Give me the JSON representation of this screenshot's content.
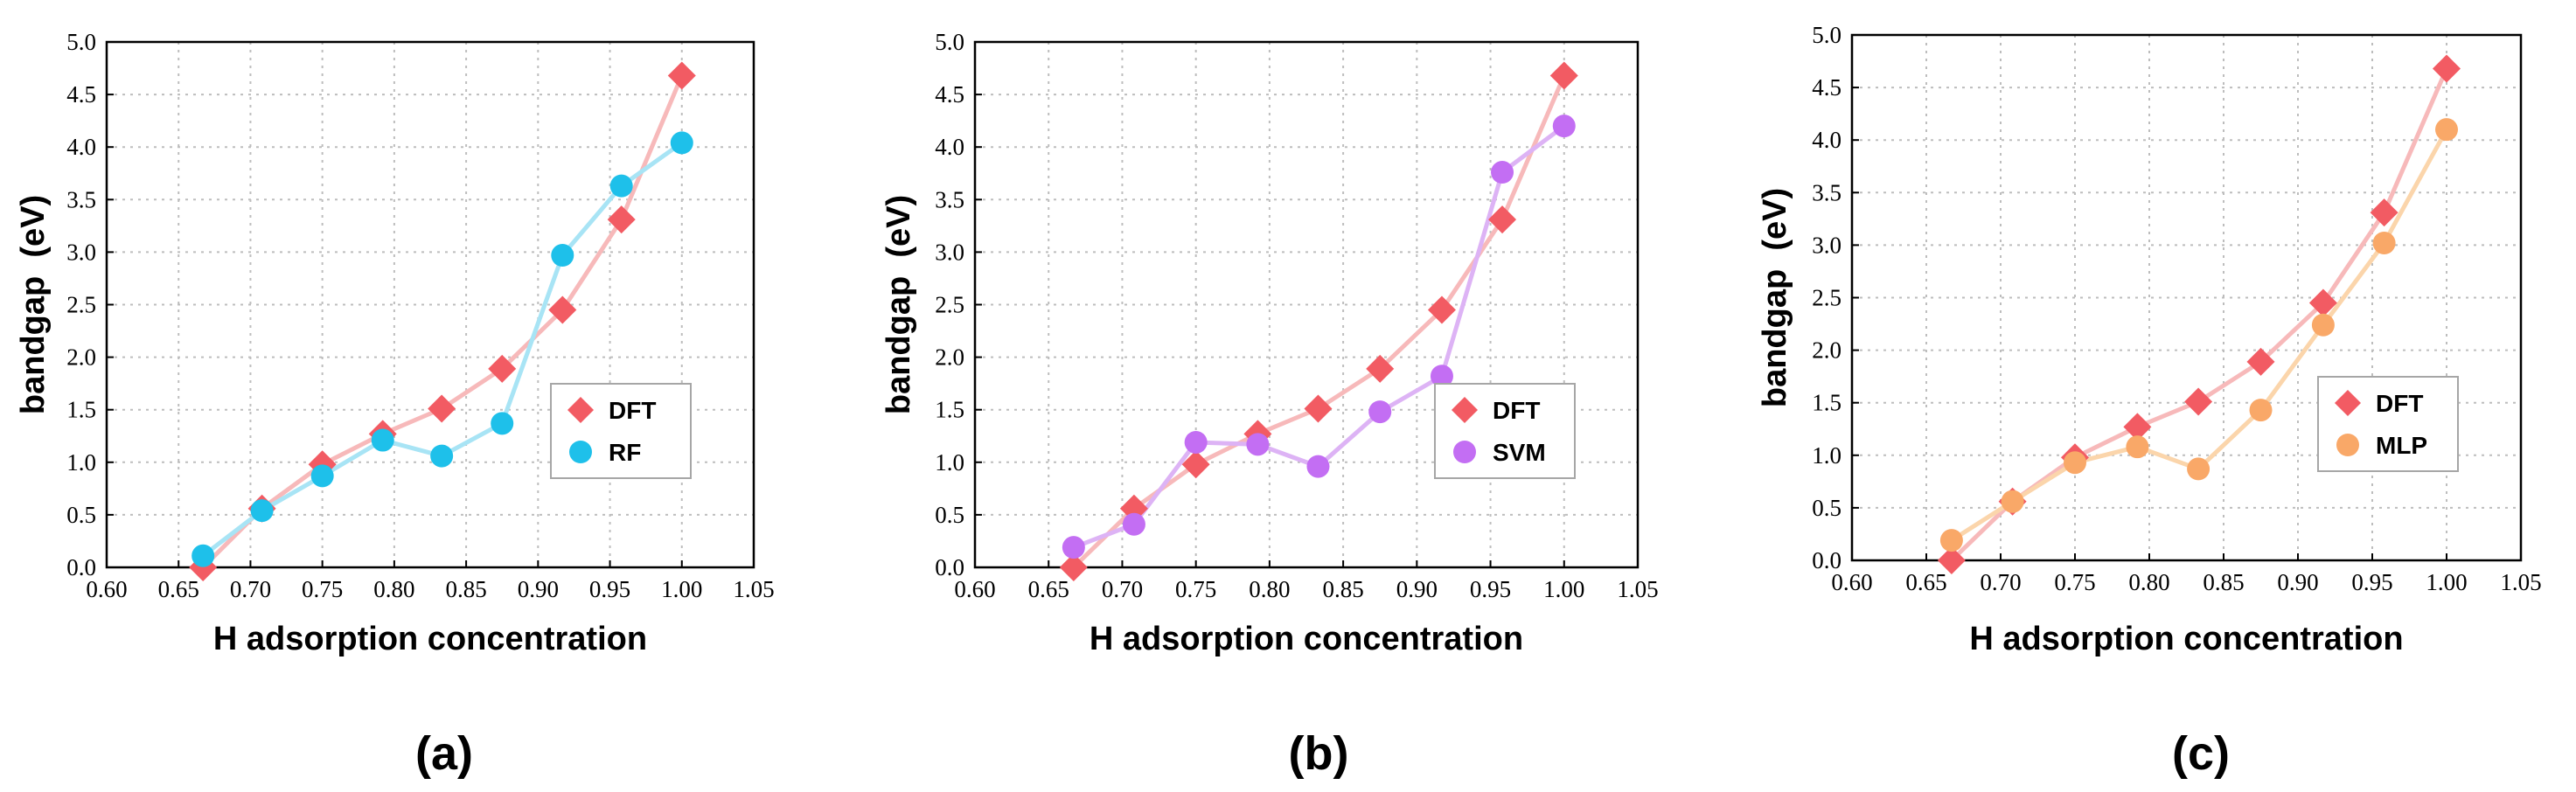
{
  "figure_title": "",
  "chart_data": [
    {
      "type": "line",
      "panel_label": "(a)",
      "title": "",
      "xlabel": "H adsorption concentration",
      "ylabel": "bandgap  (eV)",
      "xlim": [
        0.6,
        1.05
      ],
      "ylim": [
        0.0,
        5.0
      ],
      "xticks": [
        "0.60",
        "0.65",
        "0.70",
        "0.75",
        "0.80",
        "0.85",
        "0.90",
        "0.95",
        "1.00",
        "1.05"
      ],
      "yticks": [
        "0.0",
        "0.5",
        "1.0",
        "1.5",
        "2.0",
        "2.5",
        "3.0",
        "3.5",
        "4.0",
        "4.5",
        "5.0"
      ],
      "grid": true,
      "legend_position": "center-right",
      "x": [
        0.667,
        0.708,
        0.75,
        0.792,
        0.833,
        0.875,
        0.917,
        0.958,
        1.0
      ],
      "series": [
        {
          "name": "DFT",
          "marker": "diamond",
          "color": "#f25b63",
          "line_color": "#f7b9ba",
          "values": [
            0.0,
            0.56,
            0.98,
            1.27,
            1.51,
            1.89,
            2.45,
            3.31,
            4.68
          ]
        },
        {
          "name": "RF",
          "marker": "circle",
          "color": "#1ec0ea",
          "line_color": "#a8e4f5",
          "values": [
            0.11,
            0.54,
            0.87,
            1.21,
            1.06,
            1.37,
            2.97,
            3.63,
            4.04
          ]
        }
      ]
    },
    {
      "type": "line",
      "panel_label": "(b)",
      "title": "",
      "xlabel": "H adsorption concentration",
      "ylabel": "bandgap  (eV)",
      "xlim": [
        0.6,
        1.05
      ],
      "ylim": [
        0.0,
        5.0
      ],
      "xticks": [
        "0.60",
        "0.65",
        "0.70",
        "0.75",
        "0.80",
        "0.85",
        "0.90",
        "0.95",
        "1.00",
        "1.05"
      ],
      "yticks": [
        "0.0",
        "0.5",
        "1.0",
        "1.5",
        "2.0",
        "2.5",
        "3.0",
        "3.5",
        "4.0",
        "4.5",
        "5.0"
      ],
      "grid": true,
      "legend_position": "center-right",
      "x": [
        0.667,
        0.708,
        0.75,
        0.792,
        0.833,
        0.875,
        0.917,
        0.958,
        1.0
      ],
      "series": [
        {
          "name": "DFT",
          "marker": "diamond",
          "color": "#f25b63",
          "line_color": "#f7b9ba",
          "values": [
            0.0,
            0.56,
            0.98,
            1.27,
            1.51,
            1.89,
            2.45,
            3.31,
            4.68
          ]
        },
        {
          "name": "SVM",
          "marker": "circle",
          "color": "#c36ef3",
          "line_color": "#ddb3f5",
          "values": [
            0.19,
            0.41,
            1.19,
            1.17,
            0.96,
            1.48,
            1.82,
            3.76,
            4.2
          ]
        }
      ]
    },
    {
      "type": "line",
      "panel_label": "(c)",
      "title": "",
      "xlabel": "H adsorption concentration",
      "ylabel": "bandgap  (eV)",
      "xlim": [
        0.6,
        1.05
      ],
      "ylim": [
        0.0,
        5.0
      ],
      "xticks": [
        "0.60",
        "0.65",
        "0.70",
        "0.75",
        "0.80",
        "0.85",
        "0.90",
        "0.95",
        "1.00",
        "1.05"
      ],
      "yticks": [
        "0.0",
        "0.5",
        "1.0",
        "1.5",
        "2.0",
        "2.5",
        "3.0",
        "3.5",
        "4.0",
        "4.5",
        "5.0"
      ],
      "grid": true,
      "legend_position": "center-right",
      "x": [
        0.667,
        0.708,
        0.75,
        0.792,
        0.833,
        0.875,
        0.917,
        0.958,
        1.0
      ],
      "series": [
        {
          "name": "DFT",
          "marker": "diamond",
          "color": "#f25b63",
          "line_color": "#f7b9ba",
          "values": [
            0.0,
            0.56,
            0.98,
            1.27,
            1.51,
            1.89,
            2.45,
            3.31,
            4.68
          ]
        },
        {
          "name": "MLP",
          "marker": "circle",
          "color": "#f9a868",
          "line_color": "#fbd5ab",
          "values": [
            0.19,
            0.56,
            0.93,
            1.08,
            0.87,
            1.43,
            2.24,
            3.02,
            4.1
          ]
        }
      ]
    }
  ]
}
